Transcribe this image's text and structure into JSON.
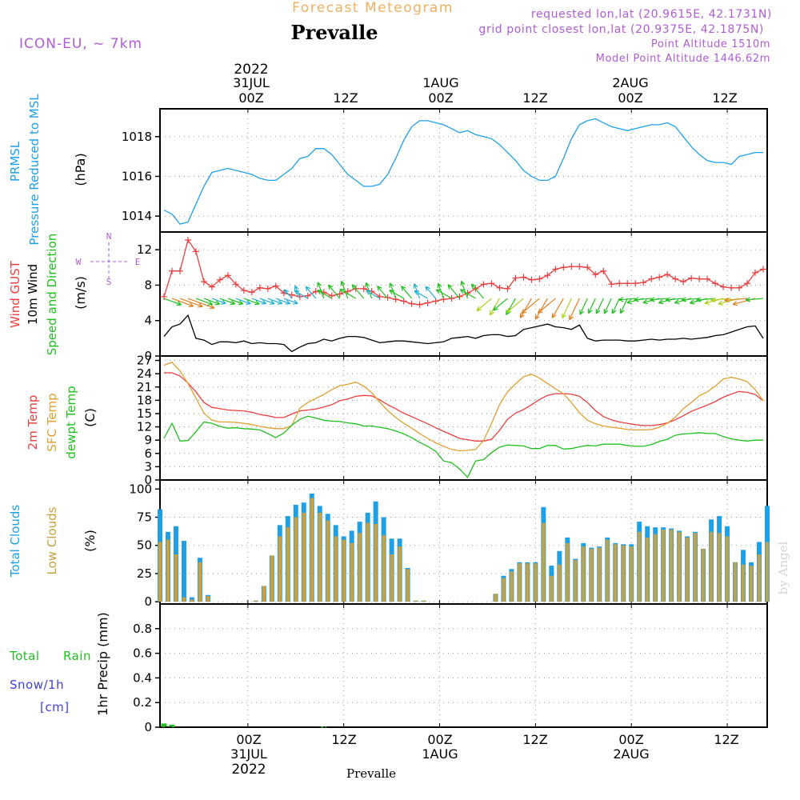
{
  "header": {
    "forecast_title": "Forecast Meteogram",
    "station": "Prevalle",
    "model": "ICON-EU, ~ 7km",
    "requested": "requested lon,lat (20.9615E, 42.1731N)",
    "grid_point": "grid point closest lon,lat (20.9375E, 42.1875N)",
    "point_altitude": "Point Altitude 1510m",
    "model_altitude": "Model Point Altitude 1446.62m"
  },
  "colors": {
    "purple": "#b05cd6",
    "orange_title": "#f0b060",
    "blue": "#1ea0e6",
    "red": "#e84040",
    "orange": "#e0a030",
    "green": "#20c020",
    "black": "#000000",
    "lowcloud": "#c8a040",
    "snow": "#4040e0",
    "grid": "#999999"
  },
  "time_axis": {
    "top_dates": [
      "2022",
      "31JUL",
      "1AUG",
      "2AUG"
    ],
    "top_ticks": [
      "00Z",
      "12Z",
      "00Z",
      "12Z",
      "00Z",
      "12Z"
    ],
    "bottom_ticks": [
      "00Z",
      "12Z",
      "00Z",
      "12Z",
      "00Z",
      "12Z"
    ],
    "bottom_dates": [
      "31JUL",
      "1AUG",
      "2AUG",
      "2022"
    ],
    "tick_hours": [
      0,
      12,
      24,
      36,
      48,
      60
    ],
    "range_hours": [
      -11,
      65
    ],
    "footer": "Prevalle",
    "watermark": "by Angel"
  },
  "chart_data": [
    {
      "type": "line",
      "id": "pressure",
      "labels": [
        "PRMSL",
        "Pressure Reduced to MSL"
      ],
      "unit": "(hPa)",
      "ylim": [
        1013.2,
        1019.4
      ],
      "yticks": [
        1014,
        1016,
        1018
      ],
      "x": [
        -10.5,
        -9.5,
        -8.5,
        -7.5,
        -6.5,
        -5.5,
        -4.5,
        -3.5,
        -2.5,
        -1.5,
        -0.5,
        0.5,
        1.5,
        2.5,
        3.5,
        4.5,
        5.5,
        6.5,
        7.5,
        8.5,
        9.5,
        10.5,
        11.5,
        12.5,
        13.5,
        14.5,
        15.5,
        16.5,
        17.5,
        18.5,
        19.5,
        20.5,
        21.5,
        22.5,
        23.5,
        24.5,
        25.5,
        26.5,
        27.5,
        28.5,
        29.5,
        30.5,
        31.5,
        32.5,
        33.5,
        34.5,
        35.5,
        36.5,
        37.5,
        38.5,
        39.5,
        40.5,
        41.5,
        42.5,
        43.5,
        44.5,
        45.5,
        46.5,
        47.5,
        48.5,
        49.5,
        50.5,
        51.5,
        52.5,
        53.5,
        54.5,
        55.5,
        56.5,
        57.5,
        58.5,
        59.5,
        60.5,
        61.5,
        62.5,
        63.5,
        64.5
      ],
      "values": [
        1014.3,
        1014.1,
        1013.6,
        1013.7,
        1014.6,
        1015.5,
        1016.2,
        1016.3,
        1016.4,
        1016.3,
        1016.2,
        1016.1,
        1015.9,
        1015.8,
        1015.8,
        1016.1,
        1016.4,
        1016.9,
        1017.0,
        1017.4,
        1017.4,
        1017.1,
        1016.6,
        1016.1,
        1015.8,
        1015.5,
        1015.5,
        1015.6,
        1016.1,
        1016.9,
        1017.8,
        1018.5,
        1018.8,
        1018.8,
        1018.7,
        1018.6,
        1018.4,
        1018.2,
        1018.3,
        1018.1,
        1018.0,
        1017.9,
        1017.6,
        1017.2,
        1016.8,
        1016.3,
        1016.0,
        1015.8,
        1015.8,
        1016.0,
        1016.9,
        1017.9,
        1018.6,
        1018.8,
        1018.9,
        1018.7,
        1018.5,
        1018.4,
        1018.3,
        1018.4,
        1018.5,
        1018.6,
        1018.6,
        1018.7,
        1018.5,
        1018.0,
        1017.5,
        1017.1,
        1016.8,
        1016.7,
        1016.7,
        1016.6,
        1017.0,
        1017.1,
        1017.2,
        1017.2
      ]
    },
    {
      "type": "line",
      "id": "wind",
      "labels": [
        "Wind GUST",
        "10m Wind",
        "Speed and Direction"
      ],
      "unit": "(m/s)",
      "compass": [
        "N",
        "S",
        "W",
        "E"
      ],
      "ylim": [
        0,
        14
      ],
      "yticks": [
        0,
        4,
        8,
        12
      ],
      "x": [
        -10.5,
        -9.5,
        -8.5,
        -7.5,
        -6.5,
        -5.5,
        -4.5,
        -3.5,
        -2.5,
        -1.5,
        -0.5,
        0.5,
        1.5,
        2.5,
        3.5,
        4.5,
        5.5,
        6.5,
        7.5,
        8.5,
        9.5,
        10.5,
        11.5,
        12.5,
        13.5,
        14.5,
        15.5,
        16.5,
        17.5,
        18.5,
        19.5,
        20.5,
        21.5,
        22.5,
        23.5,
        24.5,
        25.5,
        26.5,
        27.5,
        28.5,
        29.5,
        30.5,
        31.5,
        32.5,
        33.5,
        34.5,
        35.5,
        36.5,
        37.5,
        38.5,
        39.5,
        40.5,
        41.5,
        42.5,
        43.5,
        44.5,
        45.5,
        46.5,
        47.5,
        48.5,
        49.5,
        50.5,
        51.5,
        52.5,
        53.5,
        54.5,
        55.5,
        56.5,
        57.5,
        58.5,
        59.5,
        60.5,
        61.5,
        62.5,
        63.5,
        64.5
      ],
      "series": [
        {
          "name": "Wind GUST",
          "color": "#e84040",
          "values": [
            6.7,
            9.6,
            9.6,
            13.1,
            11.8,
            8.4,
            7.8,
            8.6,
            9.1,
            8.1,
            7.4,
            7.2,
            7.7,
            7.6,
            7.9,
            7.1,
            6.9,
            6.7,
            6.8,
            7.3,
            7.2,
            6.8,
            7.0,
            7.3,
            7.6,
            7.6,
            7.3,
            6.7,
            6.6,
            6.4,
            6.2,
            5.9,
            5.8,
            6.0,
            6.2,
            6.4,
            6.5,
            6.7,
            7.1,
            7.6,
            8.1,
            8.2,
            7.7,
            7.6,
            8.8,
            8.9,
            8.6,
            8.7,
            9.1,
            9.8,
            10.0,
            10.1,
            10.1,
            10.0,
            9.2,
            9.6,
            8.1,
            8.2,
            8.2,
            8.2,
            8.3,
            8.7,
            8.9,
            9.2,
            8.7,
            8.4,
            8.8,
            8.7,
            8.7,
            8.2,
            7.8,
            7.7,
            7.7,
            8.2,
            9.4,
            9.8
          ]
        },
        {
          "name": "10m Wind",
          "color": "#000000",
          "values": [
            2.2,
            3.3,
            3.6,
            4.6,
            2.0,
            1.8,
            1.3,
            1.6,
            1.6,
            1.5,
            1.7,
            1.4,
            1.5,
            1.4,
            1.4,
            1.3,
            0.5,
            1.0,
            1.4,
            1.5,
            1.9,
            1.7,
            2.0,
            2.2,
            2.2,
            2.1,
            1.8,
            1.5,
            1.6,
            1.7,
            1.7,
            1.6,
            1.5,
            1.4,
            1.5,
            1.6,
            2.0,
            2.1,
            2.2,
            2.0,
            2.3,
            2.4,
            2.4,
            2.2,
            2.3,
            3.0,
            3.2,
            3.4,
            3.6,
            3.3,
            3.2,
            3.0,
            3.5,
            2.0,
            1.7,
            1.8,
            1.8,
            1.8,
            1.7,
            1.7,
            1.8,
            1.9,
            1.8,
            1.9,
            1.9,
            2.0,
            1.9,
            2.0,
            2.1,
            2.3,
            2.4,
            2.7,
            3.0,
            3.3,
            3.4,
            2.0
          ]
        }
      ]
    },
    {
      "type": "line",
      "id": "temperature",
      "labels": [
        "2m Temp",
        "SFC Temp",
        "dewpt Temp"
      ],
      "unit": "(C)",
      "ylim": [
        0,
        28
      ],
      "yticks": [
        0,
        3,
        6,
        9,
        12,
        15,
        18,
        21,
        24,
        27
      ],
      "x": [
        -10.5,
        -9.5,
        -8.5,
        -7.5,
        -6.5,
        -5.5,
        -4.5,
        -3.5,
        -2.5,
        -1.5,
        -0.5,
        0.5,
        1.5,
        2.5,
        3.5,
        4.5,
        5.5,
        6.5,
        7.5,
        8.5,
        9.5,
        10.5,
        11.5,
        12.5,
        13.5,
        14.5,
        15.5,
        16.5,
        17.5,
        18.5,
        19.5,
        20.5,
        21.5,
        22.5,
        23.5,
        24.5,
        25.5,
        26.5,
        27.5,
        28.5,
        29.5,
        30.5,
        31.5,
        32.5,
        33.5,
        34.5,
        35.5,
        36.5,
        37.5,
        38.5,
        39.5,
        40.5,
        41.5,
        42.5,
        43.5,
        44.5,
        45.5,
        46.5,
        47.5,
        48.5,
        49.5,
        50.5,
        51.5,
        52.5,
        53.5,
        54.5,
        55.5,
        56.5,
        57.5,
        58.5,
        59.5,
        60.5,
        61.5,
        62.5,
        63.5,
        64.5
      ],
      "series": [
        {
          "name": "2m Temp",
          "color": "#e84040",
          "values": [
            24.2,
            24.2,
            23.5,
            21.9,
            19.9,
            17.5,
            16.4,
            16.1,
            15.8,
            15.7,
            15.6,
            15.3,
            14.8,
            14.5,
            14.1,
            14.1,
            14.9,
            15.6,
            15.8,
            16.0,
            16.5,
            17.0,
            17.9,
            18.3,
            18.9,
            19.1,
            19.0,
            18.1,
            17.0,
            16.1,
            15.1,
            14.3,
            13.5,
            12.7,
            11.8,
            11.0,
            10.2,
            9.4,
            9.1,
            8.8,
            8.8,
            9.2,
            11.2,
            13.7,
            15.1,
            15.9,
            17.0,
            18.2,
            19.1,
            19.5,
            19.5,
            19.4,
            18.9,
            17.5,
            15.7,
            14.3,
            13.6,
            13.1,
            12.8,
            12.5,
            12.3,
            12.3,
            12.5,
            12.9,
            13.6,
            14.5,
            15.5,
            16.2,
            16.9,
            17.7,
            18.7,
            19.4,
            20.0,
            19.8,
            19.3,
            17.9
          ]
        },
        {
          "name": "SFC Temp",
          "color": "#e0a030",
          "values": [
            25.9,
            26.6,
            24.6,
            21.8,
            18.5,
            15.1,
            13.5,
            13.1,
            13.1,
            13.0,
            12.8,
            12.5,
            12.1,
            11.8,
            11.6,
            11.6,
            12.3,
            16.2,
            17.5,
            18.4,
            19.3,
            20.4,
            21.3,
            21.6,
            22.1,
            21.2,
            19.7,
            17.6,
            15.7,
            14.1,
            12.8,
            11.7,
            10.5,
            9.4,
            8.4,
            7.6,
            6.9,
            6.6,
            6.7,
            6.9,
            8.9,
            12.8,
            17.0,
            19.9,
            21.7,
            23.3,
            23.9,
            23.0,
            21.8,
            20.6,
            19.5,
            17.5,
            15.2,
            13.5,
            12.7,
            12.2,
            11.9,
            11.7,
            11.4,
            11.3,
            11.3,
            11.4,
            11.9,
            12.8,
            14.2,
            16.1,
            17.5,
            19.0,
            19.9,
            21.2,
            22.8,
            23.2,
            22.8,
            22.2,
            20.4,
            17.9
          ]
        },
        {
          "name": "dewpt Temp",
          "color": "#20c020",
          "values": [
            9.4,
            12.8,
            8.8,
            8.9,
            10.9,
            13.1,
            12.8,
            12.1,
            11.7,
            11.8,
            11.6,
            11.5,
            11.3,
            10.5,
            9.6,
            10.6,
            12.4,
            13.7,
            14.4,
            14.0,
            13.5,
            13.3,
            13.2,
            12.9,
            12.7,
            12.2,
            12.2,
            11.9,
            11.6,
            11.1,
            10.4,
            9.6,
            8.5,
            7.6,
            6.5,
            4.3,
            3.9,
            2.5,
            0.6,
            4.3,
            4.6,
            6.2,
            7.4,
            7.9,
            7.8,
            7.7,
            7.1,
            7.1,
            7.8,
            7.8,
            7.0,
            7.1,
            7.5,
            7.8,
            7.7,
            8.1,
            8.1,
            8.1,
            7.8,
            7.6,
            7.6,
            8.0,
            8.7,
            9.2,
            10.1,
            10.4,
            10.5,
            10.7,
            10.5,
            10.5,
            9.8,
            9.3,
            9.0,
            8.8,
            9.0,
            9.0
          ]
        }
      ]
    },
    {
      "type": "bar",
      "id": "clouds",
      "labels": [
        "Total Clouds",
        "Low Clouds"
      ],
      "unit": "(%)",
      "ylim": [
        -2,
        108
      ],
      "yticks": [
        0,
        25,
        50,
        75,
        100
      ],
      "x": [
        -11,
        -10,
        -9,
        -8,
        -7,
        -6,
        -5,
        -4,
        -3,
        -2,
        -1,
        0,
        1,
        2,
        3,
        4,
        5,
        6,
        7,
        8,
        9,
        10,
        11,
        12,
        13,
        14,
        15,
        16,
        17,
        18,
        19,
        20,
        21,
        22,
        23,
        24,
        25,
        26,
        27,
        28,
        29,
        30,
        31,
        32,
        33,
        34,
        35,
        36,
        37,
        38,
        39,
        40,
        41,
        42,
        43,
        44,
        45,
        46,
        47,
        48,
        49,
        50,
        51,
        52,
        53,
        54,
        55,
        56,
        57,
        58,
        59,
        60,
        61,
        62,
        63,
        64,
        65
      ],
      "series": [
        {
          "name": "Total Clouds",
          "color": "#1ea0e6",
          "values": [
            82,
            62,
            67,
            54,
            4,
            39,
            6,
            0,
            0,
            0,
            0,
            0,
            1,
            14,
            41,
            68,
            76,
            86,
            88,
            96,
            85,
            78,
            68,
            58,
            63,
            71,
            79,
            89,
            75,
            56,
            56,
            30,
            1,
            1,
            0,
            0,
            0,
            0,
            0,
            0,
            0,
            0,
            7,
            23,
            29,
            35,
            35,
            35,
            84,
            32,
            45,
            57,
            38,
            52,
            48,
            49,
            57,
            52,
            51,
            51,
            71,
            67,
            66,
            66,
            65,
            63,
            58,
            62,
            47,
            73,
            76,
            67,
            35,
            46,
            35,
            53,
            85
          ]
        },
        {
          "name": "Low Clouds",
          "color": "#c8a040",
          "values": [
            53,
            55,
            42,
            4,
            2,
            35,
            5,
            0,
            0,
            0,
            0,
            0,
            1,
            14,
            41,
            58,
            66,
            75,
            79,
            92,
            79,
            72,
            58,
            55,
            52,
            61,
            70,
            69,
            59,
            42,
            49,
            29,
            1,
            1,
            0,
            0,
            0,
            0,
            0,
            0,
            0,
            0,
            7,
            21,
            27,
            34,
            34,
            34,
            70,
            23,
            33,
            52,
            37,
            49,
            47,
            48,
            55,
            51,
            50,
            49,
            62,
            57,
            60,
            64,
            64,
            62,
            57,
            61,
            47,
            62,
            61,
            58,
            35,
            33,
            32,
            42,
            53
          ]
        }
      ]
    },
    {
      "type": "bar",
      "id": "precip",
      "labels": [
        "Total",
        "Rain",
        "Snow/1h",
        "[cm]"
      ],
      "unit": "1hr Precip (mm)",
      "ylim": [
        0,
        1.0
      ],
      "yticks": [
        0,
        0.2,
        0.4,
        0.6,
        0.8
      ],
      "ytick_labels": [
        "0",
        "0.2",
        "0.4",
        "0.6",
        "0.8"
      ],
      "x": [
        -10.5,
        -9.5,
        9.5
      ],
      "series": [
        {
          "name": "Total",
          "color": "#20c020",
          "values": [
            0.03,
            0.02,
            0.005
          ]
        }
      ]
    }
  ]
}
